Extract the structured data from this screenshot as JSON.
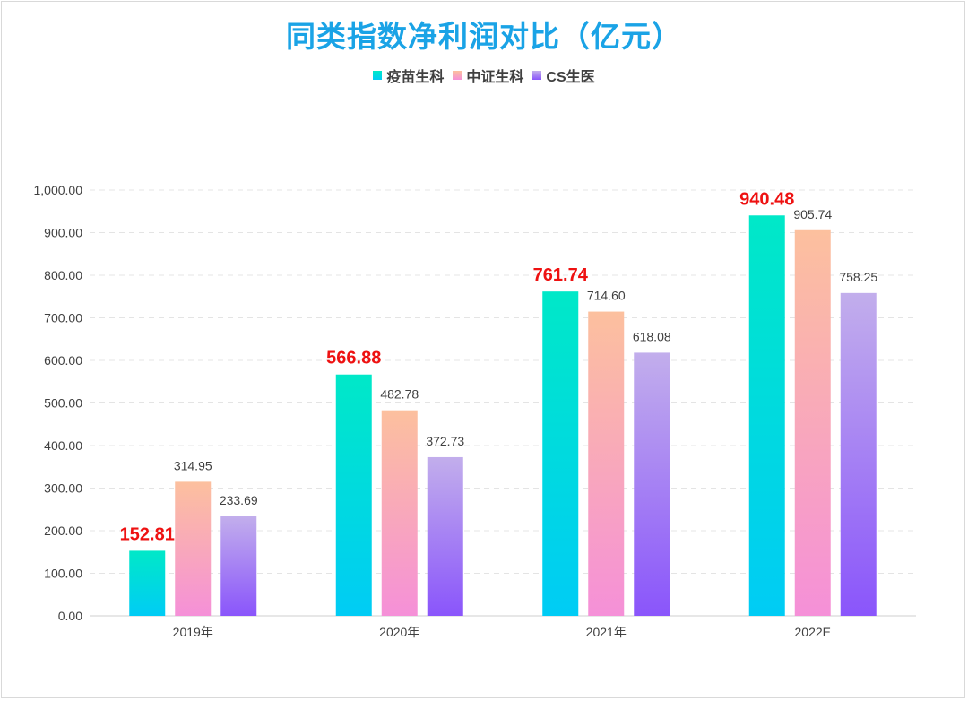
{
  "chart_data": {
    "type": "bar",
    "title": "同类指数净利润对比（亿元）",
    "categories": [
      "2019年",
      "2020年",
      "2021年",
      "2022E"
    ],
    "series": [
      {
        "name": "疫苗生科",
        "values": [
          152.81,
          566.88,
          761.74,
          940.48
        ],
        "labels": [
          "152.81",
          "566.88",
          "761.74",
          "940.48"
        ],
        "color_top": "#00e8c8",
        "color_bottom": "#00ccf5",
        "label_color": "#ee1111",
        "label_bold": true
      },
      {
        "name": "中证生科",
        "values": [
          314.95,
          482.78,
          714.6,
          905.74
        ],
        "labels": [
          "314.95",
          "482.78",
          "714.60",
          "905.74"
        ],
        "color_top": "#fcc09e",
        "color_bottom": "#f590d8",
        "label_color": "#404040",
        "label_bold": false
      },
      {
        "name": "CS生医",
        "values": [
          233.69,
          372.73,
          618.08,
          758.25
        ],
        "labels": [
          "233.69",
          "372.73",
          "618.08",
          "758.25"
        ],
        "color_top": "#c2aeec",
        "color_bottom": "#8a55fb",
        "label_color": "#404040",
        "label_bold": false
      }
    ],
    "ylim": [
      0,
      1000
    ],
    "yticks": [
      0,
      100,
      200,
      300,
      400,
      500,
      600,
      700,
      800,
      900,
      1000
    ],
    "ytick_labels": [
      "0.00",
      "100.00",
      "200.00",
      "300.00",
      "400.00",
      "500.00",
      "600.00",
      "700.00",
      "800.00",
      "900.00",
      "1,000.00"
    ],
    "xlabel": "",
    "ylabel": "",
    "grid": true,
    "legend_position": "top-center",
    "title_color": "#1aa3e6"
  }
}
